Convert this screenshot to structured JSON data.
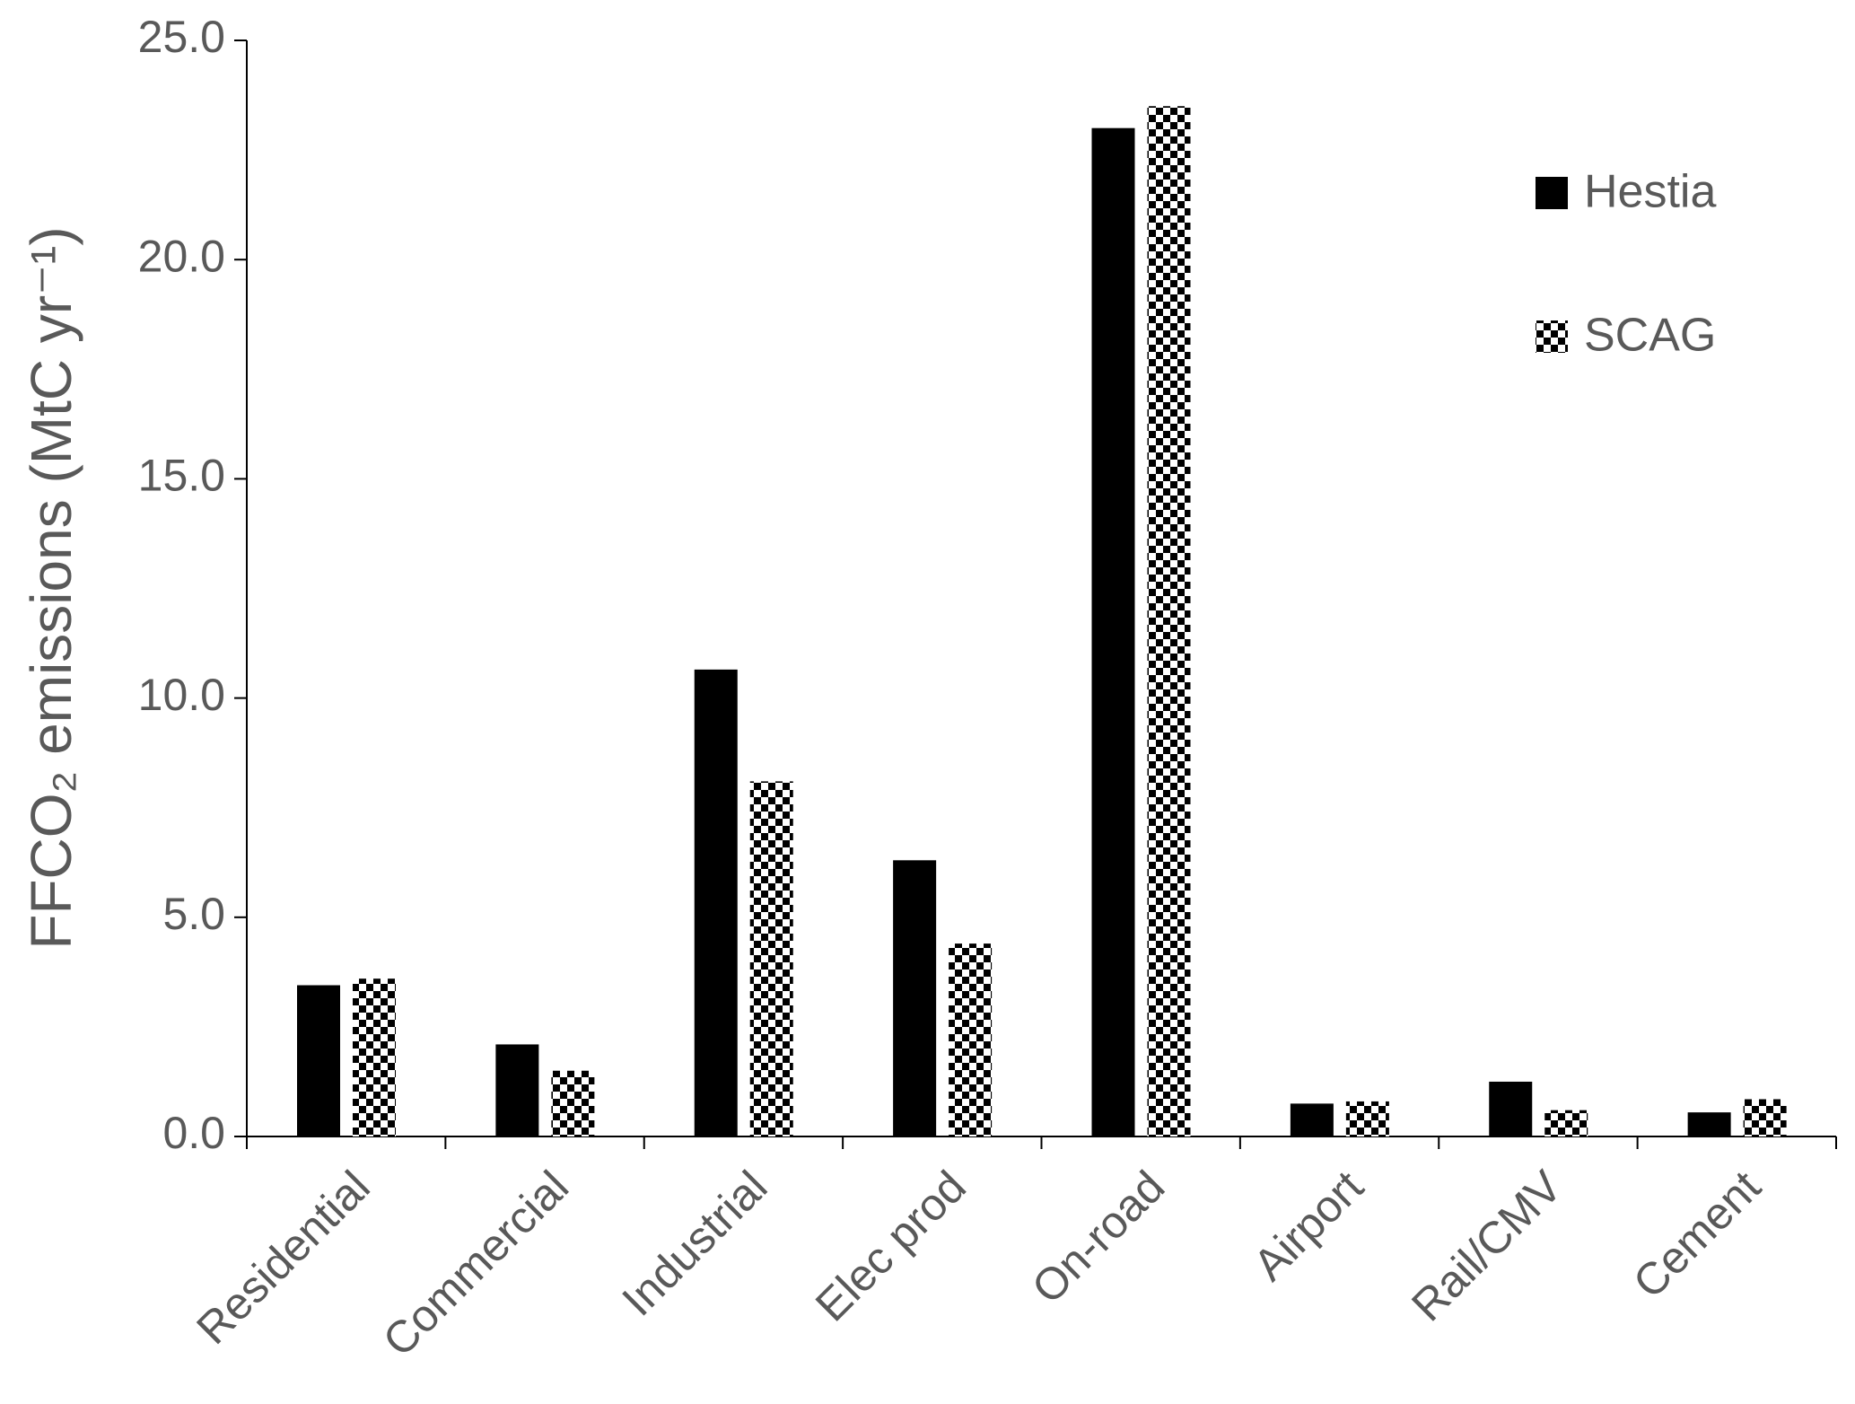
{
  "chart_data": {
    "type": "bar",
    "y_label": "FFCO₂ emissions (MtC yr⁻¹)",
    "categories": [
      "Residential",
      "Commercial",
      "Industrial",
      "Elec prod",
      "On-road",
      "Airport",
      "Rail/CMV",
      "Cement"
    ],
    "series": [
      {
        "name": "Hestia",
        "color": "#000000",
        "pattern": "solid",
        "values": [
          3.45,
          2.1,
          10.65,
          6.3,
          23.0,
          0.75,
          1.25,
          0.55
        ]
      },
      {
        "name": "SCAG",
        "color": "#000000",
        "pattern": "checker",
        "values": [
          3.6,
          1.5,
          8.1,
          4.4,
          23.5,
          0.8,
          0.6,
          0.85
        ]
      }
    ],
    "ylim": [
      0,
      25
    ],
    "yticks": [
      {
        "value": 0,
        "label": "0.0"
      },
      {
        "value": 5,
        "label": "5.0"
      },
      {
        "value": 10,
        "label": "10.0"
      },
      {
        "value": 15,
        "label": "15.0"
      },
      {
        "value": 20,
        "label": "20.0"
      },
      {
        "value": 25,
        "label": "25.0"
      }
    ],
    "grid": false,
    "legend": "upper right"
  }
}
